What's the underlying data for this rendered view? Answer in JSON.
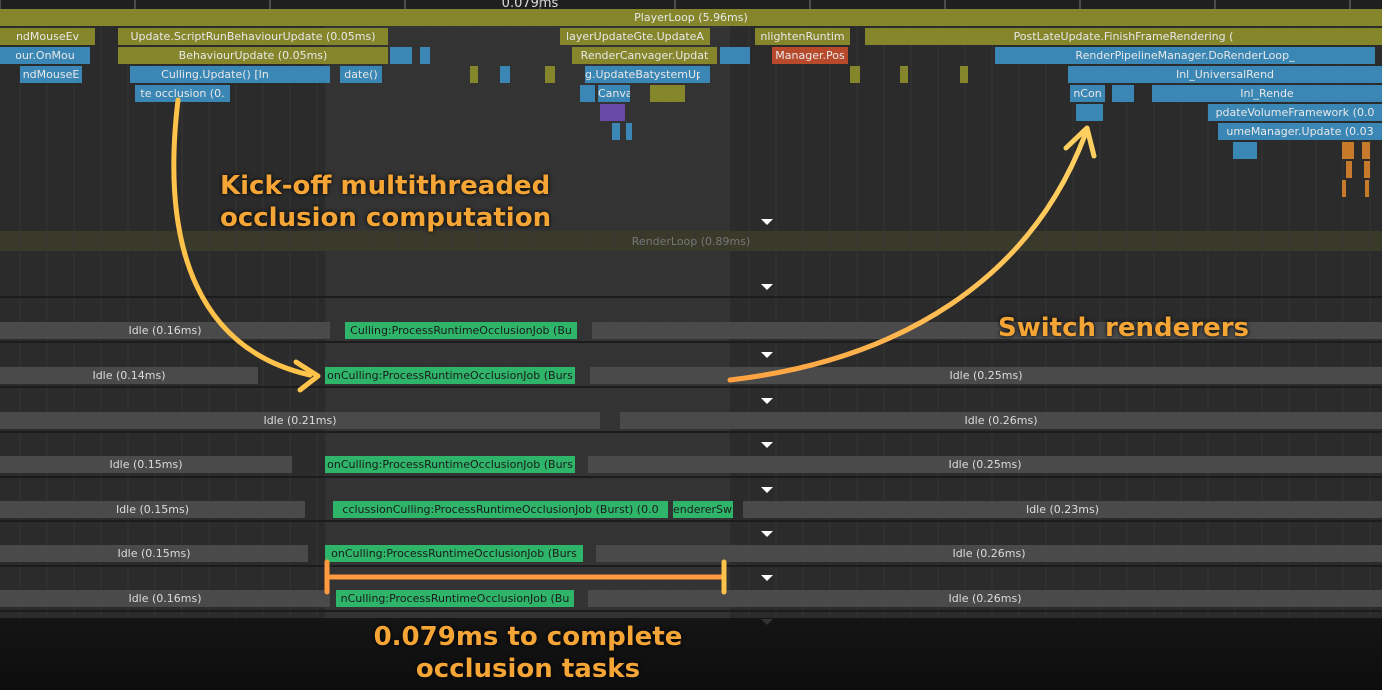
{
  "ruler": {
    "label": "0.079ms"
  },
  "main_thread": {
    "player_loop": "PlayerLoop (5.96ms)",
    "rows": [
      [
        "ndMouseEv",
        "Update.ScriptRunBehaviourUpdate (0.05ms)",
        "layerUpdateGte.UpdateA",
        "nlightenRuntim",
        "PostLateUpdate.FinishFrameRendering ("
      ],
      [
        "our.OnMou",
        "BehaviourUpdate (0.05ms)",
        "RenderCanvager.Updat",
        "Manager.Pos",
        "RenderPipelineManager.DoRenderLoop_"
      ],
      [
        "ndMouseE",
        "Culling.Update() [In",
        "date()",
        "g.UpdateBatystemUp",
        "Inl_UniversalRend"
      ],
      [
        "te occlusion (0.",
        "Canva",
        "nCon",
        "Inl_Rende"
      ],
      [
        "pdateVolumeFramework (0.0"
      ],
      [
        "umeManager.Update (0.03"
      ]
    ]
  },
  "render_loop": "RenderLoop (0.89ms)",
  "worker_rows": [
    [
      "Idle (0.16ms)",
      "Culling:ProcessRuntimeOcclusionJob (Bu"
    ],
    [
      "Idle (0.14ms)",
      "onCulling:ProcessRuntimeOcclusionJob (Burs",
      "Idle (0.25ms)"
    ],
    [
      "Idle (0.21ms)",
      "Idle (0.26ms)"
    ],
    [
      "Idle (0.15ms)",
      "onCulling:ProcessRuntimeOcclusionJob (Burs",
      "Idle (0.25ms)"
    ],
    [
      "Idle (0.15ms)",
      "cclussionCulling:ProcessRuntimeOcclusionJob (Burst) (0.0",
      "endererSwi",
      "Idle (0.23ms)"
    ],
    [
      "Idle (0.15ms)",
      "onCulling:ProcessRuntimeOcclusionJob (Burs",
      "Idle (0.26ms)"
    ],
    [
      "Idle (0.16ms)",
      "nCulling:ProcessRuntimeOcclusionJob (Bu",
      "Idle (0.26ms)"
    ]
  ],
  "annotations": {
    "kickoff": [
      "Kick-off multithreaded",
      "occlusion computation"
    ],
    "switch": "Switch renderers",
    "duration": [
      "0.079ms to complete",
      "occlusion tasks"
    ]
  }
}
